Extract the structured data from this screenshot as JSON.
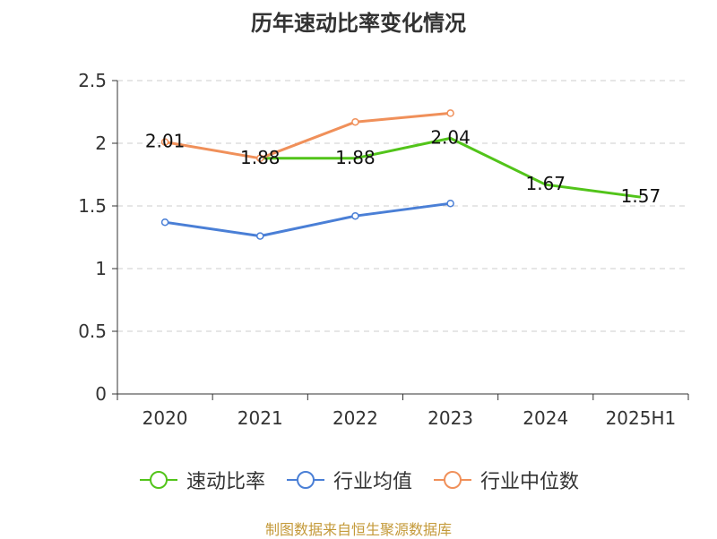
{
  "chart_data": {
    "type": "line",
    "title": "历年速动比率变化情况",
    "categories": [
      "2020",
      "2021",
      "2022",
      "2023",
      "2024",
      "2025H1"
    ],
    "ylim": [
      0,
      2.5
    ],
    "yticks": [
      "0",
      "0.5",
      "1",
      "1.5",
      "2",
      "2.5"
    ],
    "grid": true,
    "legend_position": "bottom",
    "series": [
      {
        "name": "速动比率",
        "color": "#52c41a",
        "values": [
          null,
          1.88,
          1.88,
          2.04,
          1.67,
          1.57
        ],
        "labels": [
          null,
          "1.88",
          "1.88",
          "2.04",
          "1.67",
          "1.57"
        ],
        "markers": false
      },
      {
        "name": "行业均值",
        "color": "#4a7fd6",
        "values": [
          1.37,
          1.26,
          1.42,
          1.52,
          null,
          null
        ],
        "markers": true
      },
      {
        "name": "行业中位数",
        "color": "#f0905a",
        "values": [
          2.01,
          1.88,
          2.17,
          2.24,
          null,
          null
        ],
        "labels": [
          "2.01",
          null,
          null,
          null,
          null,
          null
        ],
        "markers": true
      }
    ]
  },
  "source": "制图数据来自恒生聚源数据库"
}
